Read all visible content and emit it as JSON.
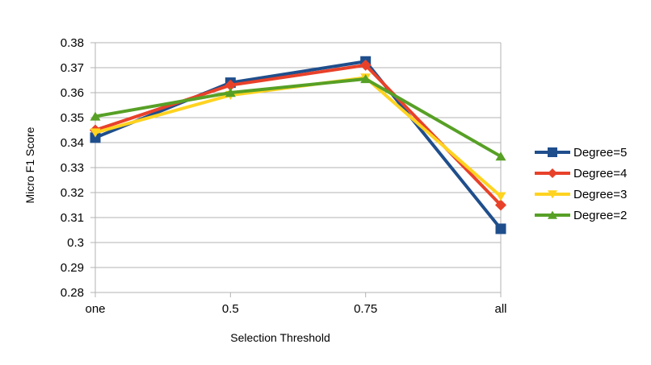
{
  "chart_data": {
    "type": "line",
    "title": "",
    "xlabel": "Selection Threshold",
    "ylabel": "Micro F1 Score",
    "categories": [
      "one",
      "0.5",
      "0.75",
      "all"
    ],
    "ylim": [
      0.28,
      0.38
    ],
    "yticks": [
      "0.28",
      "0.29",
      "0.3",
      "0.31",
      "0.32",
      "0.33",
      "0.34",
      "0.35",
      "0.36",
      "0.37",
      "0.38"
    ],
    "grid": true,
    "legend_position": "right",
    "series": [
      {
        "name": "Degree=5",
        "values": [
          0.342,
          0.364,
          0.3725,
          0.3055
        ],
        "color": "#1f4e8c",
        "marker": "square"
      },
      {
        "name": "Degree=4",
        "values": [
          0.345,
          0.363,
          0.371,
          0.315
        ],
        "color": "#e8412a",
        "marker": "diamond"
      },
      {
        "name": "Degree=3",
        "values": [
          0.344,
          0.359,
          0.366,
          0.3185
        ],
        "color": "#ffd320",
        "marker": "triangle-down"
      },
      {
        "name": "Degree=2",
        "values": [
          0.3505,
          0.36,
          0.3655,
          0.3345
        ],
        "color": "#57a026",
        "marker": "triangle-up"
      }
    ]
  }
}
